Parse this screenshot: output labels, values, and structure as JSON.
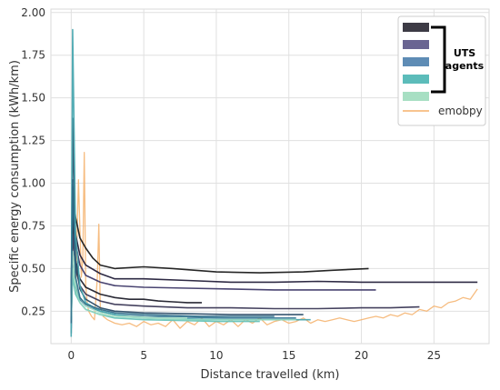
{
  "chart_data": {
    "type": "line",
    "xlabel": "Distance travelled (km)",
    "ylabel": "Specific energy consumption (kWh/km)",
    "xlim": [
      -1.4,
      28.8
    ],
    "ylim": [
      0.06,
      2.02
    ],
    "xticks": [
      0,
      5,
      10,
      15,
      20,
      25
    ],
    "yticks": [
      0.25,
      0.5,
      0.75,
      1.0,
      1.25,
      1.5,
      1.75,
      2.0
    ],
    "xtick_labels": [
      "0",
      "5",
      "10",
      "15",
      "20",
      "25"
    ],
    "ytick_labels": [
      "0.25",
      "0.50",
      "0.75",
      "1.00",
      "1.25",
      "1.50",
      "1.75",
      "2.00"
    ],
    "grid": true,
    "legend_position": "top-right",
    "legend": {
      "group_label_line1": "UTS",
      "group_label_line2": "agents",
      "uts_colors": [
        "#3d3b45",
        "#6a6592",
        "#5e8cb5",
        "#5cbcba",
        "#a7dfc3"
      ],
      "emobpy_label": "emobpy",
      "emobpy_color": "#f5b06a"
    },
    "series": [
      {
        "group": "uts",
        "color": "#1a1a1a",
        "x": [
          0,
          0.1,
          0.3,
          0.6,
          1,
          1.5,
          2,
          3,
          5,
          7,
          10,
          13,
          16,
          18,
          20.5
        ],
        "y": [
          0.35,
          0.98,
          0.8,
          0.68,
          0.62,
          0.56,
          0.52,
          0.5,
          0.51,
          0.5,
          0.48,
          0.475,
          0.48,
          0.49,
          0.5
        ]
      },
      {
        "group": "uts",
        "color": "#231f3a",
        "x": [
          0,
          0.1,
          0.3,
          0.6,
          1,
          2,
          3,
          5,
          8,
          11,
          14,
          17,
          20,
          24,
          28
        ],
        "y": [
          0.36,
          0.9,
          0.7,
          0.58,
          0.52,
          0.47,
          0.44,
          0.44,
          0.43,
          0.42,
          0.42,
          0.425,
          0.42,
          0.42,
          0.42
        ]
      },
      {
        "group": "uts",
        "color": "#3f3a69",
        "x": [
          0,
          0.1,
          0.3,
          0.6,
          1,
          2,
          3,
          5,
          8,
          11,
          14,
          17,
          19,
          21
        ],
        "y": [
          0.34,
          0.85,
          0.65,
          0.52,
          0.46,
          0.42,
          0.4,
          0.39,
          0.385,
          0.38,
          0.375,
          0.375,
          0.375,
          0.375
        ]
      },
      {
        "group": "uts",
        "color": "#1f1f2b",
        "x": [
          0,
          0.1,
          0.3,
          0.6,
          1,
          2,
          3,
          4,
          5,
          6,
          7,
          8,
          9
        ],
        "y": [
          0.3,
          0.8,
          0.55,
          0.44,
          0.39,
          0.35,
          0.33,
          0.32,
          0.32,
          0.31,
          0.305,
          0.3,
          0.3
        ]
      },
      {
        "group": "uts",
        "color": "#3b3856",
        "x": [
          0,
          0.1,
          0.3,
          0.6,
          1,
          2,
          3,
          5,
          8,
          11,
          14,
          17,
          20,
          22,
          24
        ],
        "y": [
          0.28,
          0.7,
          0.5,
          0.4,
          0.35,
          0.31,
          0.29,
          0.28,
          0.27,
          0.27,
          0.265,
          0.265,
          0.27,
          0.27,
          0.275
        ]
      },
      {
        "group": "uts",
        "color": "#2c4d68",
        "x": [
          0,
          0.1,
          0.3,
          0.6,
          1,
          2,
          3,
          5,
          8,
          11,
          14,
          16
        ],
        "y": [
          0.12,
          1.38,
          0.55,
          0.38,
          0.32,
          0.27,
          0.25,
          0.24,
          0.235,
          0.23,
          0.23,
          0.23
        ]
      },
      {
        "group": "uts",
        "color": "#3c7b99",
        "x": [
          0,
          0.1,
          0.3,
          0.6,
          1,
          2,
          3,
          5,
          8,
          11,
          14,
          15.5
        ],
        "y": [
          0.15,
          0.6,
          0.4,
          0.32,
          0.28,
          0.25,
          0.23,
          0.22,
          0.215,
          0.21,
          0.21,
          0.21
        ]
      },
      {
        "group": "uts",
        "color": "#4aa8b0",
        "x": [
          0,
          0.1,
          0.3,
          0.6,
          1,
          2,
          3,
          5,
          8,
          11,
          14,
          16.5
        ],
        "y": [
          0.1,
          1.9,
          0.7,
          0.4,
          0.3,
          0.25,
          0.23,
          0.21,
          0.205,
          0.2,
          0.2,
          0.2
        ]
      },
      {
        "group": "uts",
        "color": "#66c2b8",
        "x": [
          0,
          0.1,
          0.3,
          0.6,
          1,
          2,
          3,
          5,
          8,
          10,
          12,
          13
        ],
        "y": [
          0.2,
          0.45,
          0.35,
          0.3,
          0.26,
          0.23,
          0.21,
          0.2,
          0.195,
          0.19,
          0.19,
          0.19
        ]
      },
      {
        "group": "uts",
        "color": "#8fd6c0",
        "x": [
          0,
          0.1,
          0.3,
          0.6,
          1,
          2,
          3,
          5,
          8,
          11,
          14,
          15.5
        ],
        "y": [
          0.22,
          0.5,
          0.38,
          0.3,
          0.26,
          0.23,
          0.22,
          0.21,
          0.2,
          0.2,
          0.2,
          0.2
        ]
      },
      {
        "group": "uts",
        "color": "#b2e4cc",
        "x": [
          0,
          0.1,
          0.3,
          0.6,
          1,
          2,
          3,
          4,
          6,
          8
        ],
        "y": [
          0.25,
          0.6,
          0.42,
          0.33,
          0.28,
          0.24,
          0.22,
          0.22,
          0.21,
          0.21
        ]
      },
      {
        "group": "uts",
        "color": "#2f6f8a",
        "x": [
          0,
          0.1,
          0.3,
          0.6,
          1,
          2,
          3,
          5,
          7,
          9,
          12,
          14
        ],
        "y": [
          0.18,
          1.02,
          0.45,
          0.33,
          0.29,
          0.26,
          0.24,
          0.23,
          0.225,
          0.22,
          0.22,
          0.22
        ]
      },
      {
        "group": "emobpy",
        "color": "#f5b06a",
        "x": [
          0.3,
          0.5,
          0.7,
          0.8,
          0.9,
          1.0,
          1.1,
          1.2,
          1.4,
          1.6,
          1.8,
          1.9,
          2.0,
          2.2,
          2.5,
          3,
          3.5,
          4,
          4.5,
          5,
          5.5,
          6,
          6.5,
          7,
          7.5,
          8,
          8.5,
          9,
          9.5,
          10,
          10.5,
          11,
          11.5,
          12,
          12.5,
          13,
          13.5,
          14,
          14.5,
          15,
          15.5,
          16,
          16.5,
          17,
          17.5,
          18,
          18.5,
          19,
          19.5,
          20,
          20.5,
          21,
          21.5,
          22,
          22.5,
          23,
          23.5,
          24,
          24.5,
          25,
          25.5,
          26,
          26.5,
          27,
          27.5,
          28
        ],
        "y": [
          0.35,
          1.02,
          0.45,
          0.55,
          1.18,
          0.4,
          0.3,
          0.25,
          0.22,
          0.2,
          0.45,
          0.76,
          0.28,
          0.22,
          0.2,
          0.18,
          0.17,
          0.18,
          0.16,
          0.19,
          0.17,
          0.18,
          0.16,
          0.2,
          0.15,
          0.19,
          0.17,
          0.21,
          0.16,
          0.19,
          0.17,
          0.2,
          0.16,
          0.2,
          0.18,
          0.21,
          0.17,
          0.19,
          0.2,
          0.18,
          0.19,
          0.21,
          0.18,
          0.2,
          0.19,
          0.2,
          0.21,
          0.2,
          0.19,
          0.2,
          0.21,
          0.22,
          0.21,
          0.23,
          0.22,
          0.24,
          0.23,
          0.26,
          0.25,
          0.28,
          0.27,
          0.3,
          0.31,
          0.33,
          0.32,
          0.38
        ]
      }
    ]
  }
}
